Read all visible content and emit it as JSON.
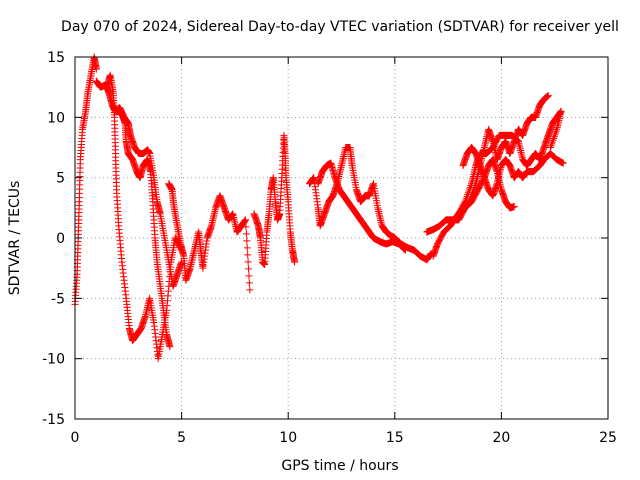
{
  "chart_data": {
    "type": "scatter",
    "title": "Day 070 of 2024, Sidereal Day-to-day VTEC variation (SDTVAR) for receiver yell",
    "xlabel": "GPS time / hours",
    "ylabel": "SDTVAR / TECUs",
    "xlim": [
      0,
      25
    ],
    "ylim": [
      -15,
      15
    ],
    "xticks": [
      0,
      5,
      10,
      15,
      20,
      25
    ],
    "yticks": [
      -15,
      -10,
      -5,
      0,
      5,
      10,
      15
    ],
    "grid": true,
    "marker": "plus",
    "legend": "none",
    "colors": {
      "series": "#ff0000",
      "grid": "#a0a0a0",
      "axis": "#000000"
    },
    "series": [
      {
        "name": "trace-1",
        "points": [
          [
            0.0,
            -5.5
          ],
          [
            0.1,
            -3
          ],
          [
            0.15,
            0
          ],
          [
            0.2,
            3
          ],
          [
            0.25,
            6.5
          ],
          [
            0.35,
            9
          ],
          [
            0.5,
            10.5
          ],
          [
            0.6,
            12
          ],
          [
            0.75,
            13.5
          ],
          [
            0.9,
            15
          ],
          [
            1.0,
            14
          ]
        ]
      },
      {
        "name": "trace-2",
        "points": [
          [
            1.0,
            13
          ],
          [
            1.2,
            12.5
          ],
          [
            1.45,
            12.7
          ],
          [
            1.6,
            12
          ],
          [
            1.75,
            11
          ],
          [
            1.9,
            10.5
          ],
          [
            2.1,
            10.8
          ],
          [
            2.3,
            10
          ],
          [
            2.5,
            9.5
          ],
          [
            2.6,
            8.5
          ],
          [
            2.8,
            7.5
          ],
          [
            3.0,
            7
          ],
          [
            3.2,
            7
          ],
          [
            3.4,
            7.3
          ],
          [
            3.5,
            7
          ],
          [
            3.7,
            5
          ],
          [
            3.85,
            3
          ],
          [
            4.0,
            2
          ],
          [
            4.2,
            0
          ],
          [
            4.4,
            -2
          ],
          [
            4.6,
            -4
          ],
          [
            4.8,
            -3
          ],
          [
            5.0,
            -2
          ]
        ]
      },
      {
        "name": "trace-3",
        "points": [
          [
            1.5,
            12.5
          ],
          [
            1.65,
            13.5
          ],
          [
            1.8,
            12
          ],
          [
            1.85,
            10
          ],
          [
            1.9,
            7
          ],
          [
            1.95,
            4
          ],
          [
            2.05,
            1
          ],
          [
            2.2,
            -2
          ],
          [
            2.4,
            -5
          ],
          [
            2.55,
            -7.5
          ],
          [
            2.7,
            -8.5
          ],
          [
            2.9,
            -8
          ],
          [
            3.1,
            -7.5
          ],
          [
            3.3,
            -6.5
          ],
          [
            3.5,
            -5
          ],
          [
            3.7,
            -7
          ],
          [
            3.9,
            -10
          ],
          [
            4.1,
            -8
          ],
          [
            4.3,
            -6
          ],
          [
            4.5,
            -2
          ],
          [
            4.7,
            0
          ],
          [
            5.0,
            -1
          ]
        ]
      },
      {
        "name": "trace-4",
        "points": [
          [
            1.8,
            10.8
          ],
          [
            2.0,
            10.5
          ],
          [
            2.2,
            10.3
          ],
          [
            2.35,
            9.5
          ],
          [
            2.4,
            8
          ],
          [
            2.5,
            7
          ],
          [
            2.7,
            6.5
          ],
          [
            2.9,
            5.5
          ],
          [
            3.05,
            5
          ],
          [
            3.2,
            6
          ],
          [
            3.4,
            6.5
          ],
          [
            3.55,
            5.5
          ],
          [
            3.65,
            3
          ],
          [
            3.75,
            0
          ],
          [
            3.85,
            -2
          ],
          [
            4.0,
            -4
          ],
          [
            4.15,
            -6
          ],
          [
            4.3,
            -8
          ],
          [
            4.45,
            -9
          ]
        ]
      },
      {
        "name": "trace-5",
        "points": [
          [
            4.4,
            4.5
          ],
          [
            4.55,
            4
          ],
          [
            4.65,
            2.5
          ],
          [
            4.8,
            1
          ],
          [
            4.95,
            -0.5
          ],
          [
            5.1,
            -1.5
          ],
          [
            5.2,
            -3.5
          ],
          [
            5.4,
            -2.5
          ],
          [
            5.6,
            -1
          ],
          [
            5.8,
            0.5
          ],
          [
            5.9,
            -1
          ],
          [
            6.0,
            -2.5
          ],
          [
            6.2,
            0
          ],
          [
            6.4,
            1
          ],
          [
            6.6,
            2.5
          ],
          [
            6.8,
            3.5
          ],
          [
            7.0,
            2.5
          ],
          [
            7.2,
            1.5
          ],
          [
            7.4,
            2
          ],
          [
            7.6,
            0.5
          ],
          [
            7.8,
            1
          ],
          [
            8.0,
            1.5
          ],
          [
            8.2,
            -4.3
          ]
        ]
      },
      {
        "name": "trace-6",
        "points": [
          [
            8.4,
            2
          ],
          [
            8.6,
            1
          ],
          [
            8.7,
            0
          ],
          [
            8.8,
            -2
          ],
          [
            8.9,
            -2.2
          ],
          [
            9.0,
            0.5
          ],
          [
            9.1,
            2
          ],
          [
            9.2,
            4
          ],
          [
            9.3,
            5
          ],
          [
            9.4,
            3
          ],
          [
            9.5,
            1.5
          ],
          [
            9.6,
            2
          ],
          [
            9.7,
            5
          ],
          [
            9.8,
            8.5
          ],
          [
            9.85,
            7
          ],
          [
            9.9,
            5
          ],
          [
            10.0,
            3
          ],
          [
            10.1,
            0.5
          ],
          [
            10.2,
            -1
          ],
          [
            10.3,
            -2
          ]
        ]
      },
      {
        "name": "trace-7",
        "points": [
          [
            11.0,
            4.5
          ],
          [
            11.2,
            5
          ],
          [
            11.4,
            2.5
          ],
          [
            11.5,
            1
          ],
          [
            11.7,
            2
          ],
          [
            11.9,
            3
          ],
          [
            12.1,
            3.5
          ],
          [
            12.3,
            4.5
          ],
          [
            12.5,
            6
          ],
          [
            12.7,
            7.5
          ],
          [
            12.9,
            7.5
          ],
          [
            13.0,
            6
          ],
          [
            13.2,
            4
          ],
          [
            13.4,
            3
          ],
          [
            13.6,
            3.5
          ],
          [
            13.8,
            3.5
          ],
          [
            14.0,
            4.5
          ],
          [
            14.2,
            2.5
          ],
          [
            14.4,
            1
          ],
          [
            14.6,
            0.5
          ],
          [
            14.8,
            0.2
          ],
          [
            15.0,
            0
          ],
          [
            15.3,
            -0.5
          ],
          [
            15.6,
            -0.8
          ],
          [
            15.9,
            -1
          ],
          [
            16.2,
            -1.5
          ],
          [
            16.5,
            -1.8
          ],
          [
            16.7,
            -1.3
          ]
        ]
      },
      {
        "name": "trace-8",
        "points": [
          [
            11.4,
            4.5
          ],
          [
            11.6,
            5.5
          ],
          [
            11.8,
            6
          ],
          [
            12.0,
            6.2
          ],
          [
            12.2,
            5
          ],
          [
            12.4,
            4
          ],
          [
            12.6,
            3.5
          ],
          [
            12.8,
            3
          ],
          [
            13.0,
            2.5
          ],
          [
            13.2,
            2
          ],
          [
            13.4,
            1.5
          ],
          [
            13.6,
            1
          ],
          [
            13.8,
            0.5
          ],
          [
            14.0,
            0
          ],
          [
            14.3,
            -0.3
          ],
          [
            14.6,
            -0.5
          ],
          [
            14.9,
            -0.3
          ],
          [
            15.2,
            -0.5
          ],
          [
            15.5,
            -1
          ]
        ]
      },
      {
        "name": "trace-9",
        "points": [
          [
            16.5,
            0.5
          ],
          [
            16.8,
            0.7
          ],
          [
            17.1,
            1
          ],
          [
            17.4,
            1.5
          ],
          [
            17.7,
            1.5
          ],
          [
            18.0,
            1.5
          ],
          [
            18.3,
            2.5
          ],
          [
            18.6,
            3
          ],
          [
            18.9,
            4
          ],
          [
            19.2,
            5
          ],
          [
            19.4,
            6
          ],
          [
            19.6,
            6.5
          ],
          [
            19.8,
            5.5
          ],
          [
            20.0,
            4
          ],
          [
            20.2,
            3
          ],
          [
            20.4,
            2.5
          ],
          [
            20.6,
            2.6
          ]
        ]
      },
      {
        "name": "trace-10",
        "points": [
          [
            16.8,
            -1.5
          ],
          [
            17.0,
            -0.5
          ],
          [
            17.3,
            0.5
          ],
          [
            17.6,
            1
          ],
          [
            17.9,
            1.8
          ],
          [
            18.2,
            2.5
          ],
          [
            18.5,
            3
          ],
          [
            18.8,
            4.5
          ],
          [
            19.0,
            6
          ],
          [
            19.2,
            7.5
          ],
          [
            19.4,
            9
          ],
          [
            19.6,
            8
          ],
          [
            19.8,
            6.5
          ],
          [
            20.0,
            7.5
          ],
          [
            20.2,
            8
          ],
          [
            20.4,
            7
          ],
          [
            20.6,
            8
          ],
          [
            20.8,
            9
          ],
          [
            21.0,
            8.5
          ],
          [
            21.2,
            9.5
          ],
          [
            21.4,
            10
          ],
          [
            21.6,
            10
          ],
          [
            21.8,
            11
          ],
          [
            22.0,
            11.5
          ],
          [
            22.2,
            11.8
          ]
        ]
      },
      {
        "name": "trace-11",
        "points": [
          [
            18.0,
            2
          ],
          [
            18.3,
            3
          ],
          [
            18.6,
            4.5
          ],
          [
            18.8,
            6
          ],
          [
            19.0,
            7
          ],
          [
            19.3,
            7
          ],
          [
            19.6,
            7.5
          ],
          [
            19.9,
            8.5
          ],
          [
            20.2,
            8.5
          ],
          [
            20.5,
            8.5
          ],
          [
            20.8,
            8
          ],
          [
            21.0,
            6.5
          ],
          [
            21.2,
            6
          ],
          [
            21.4,
            6.5
          ],
          [
            21.6,
            7
          ],
          [
            21.8,
            6.5
          ],
          [
            22.0,
            7.5
          ],
          [
            22.2,
            8.5
          ],
          [
            22.4,
            9.5
          ],
          [
            22.6,
            10
          ],
          [
            22.8,
            10.5
          ],
          [
            22.6,
            9
          ],
          [
            22.3,
            7.5
          ]
        ]
      },
      {
        "name": "trace-12",
        "points": [
          [
            18.2,
            6
          ],
          [
            18.4,
            7
          ],
          [
            18.6,
            7.5
          ],
          [
            18.8,
            7
          ],
          [
            19.0,
            6
          ],
          [
            19.2,
            5
          ],
          [
            19.4,
            4
          ],
          [
            19.6,
            3.5
          ],
          [
            19.8,
            4.5
          ],
          [
            20.0,
            6
          ],
          [
            20.2,
            6.5
          ],
          [
            20.4,
            6
          ],
          [
            20.6,
            5
          ],
          [
            20.8,
            5.5
          ],
          [
            21.0,
            5
          ],
          [
            21.2,
            5.5
          ],
          [
            21.5,
            5.5
          ],
          [
            21.8,
            6
          ],
          [
            22.0,
            6.5
          ],
          [
            22.3,
            7
          ],
          [
            22.6,
            6.5
          ],
          [
            22.9,
            6.2
          ]
        ]
      }
    ]
  }
}
